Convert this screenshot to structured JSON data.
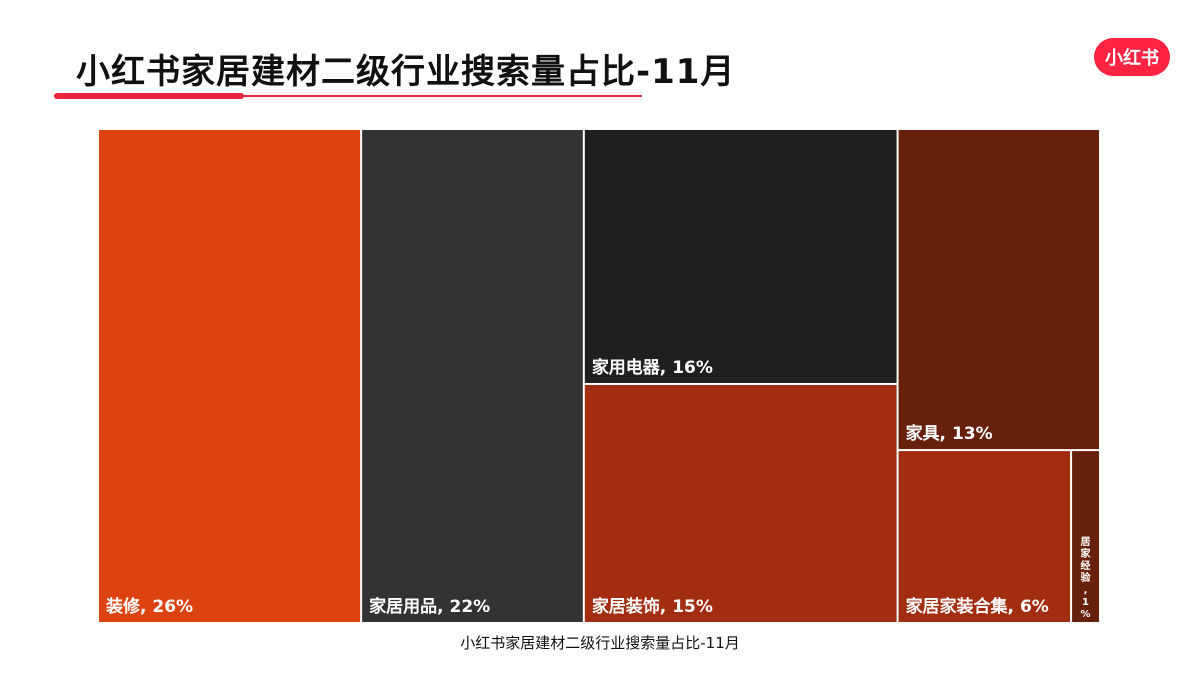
{
  "title": "小红书家居建材二级行业搜索量占比-11月",
  "logo_text": "小红书",
  "caption": "小红书家居建材二级行业搜索量占比-11月",
  "colors": {
    "brand": "#ff2442",
    "title_line": "#e8263f"
  },
  "chart_data": {
    "type": "treemap",
    "title": "小红书家居建材二级行业搜索量占比-11月",
    "unit": "%",
    "items": [
      {
        "label": "装修, 26%",
        "name": "装修",
        "value": 26,
        "color": "#dc4311"
      },
      {
        "label": "家居用品, 22%",
        "name": "家居用品",
        "value": 22,
        "color": "#333333"
      },
      {
        "label": "家用电器, 16%",
        "name": "家用电器",
        "value": 16,
        "color": "#1f1f1f"
      },
      {
        "label": "家居装饰, 15%",
        "name": "家居装饰",
        "value": 15,
        "color": "#a32d10"
      },
      {
        "label": "家具, 13%",
        "name": "家具",
        "value": 13,
        "color": "#67200b"
      },
      {
        "label": "家居家装合集, 6%",
        "name": "家居家装合集",
        "value": 6,
        "color": "#a32d10"
      },
      {
        "label": "居家经验, 1%",
        "name": "居家经验",
        "value": 1,
        "color": "#67200b"
      }
    ]
  }
}
